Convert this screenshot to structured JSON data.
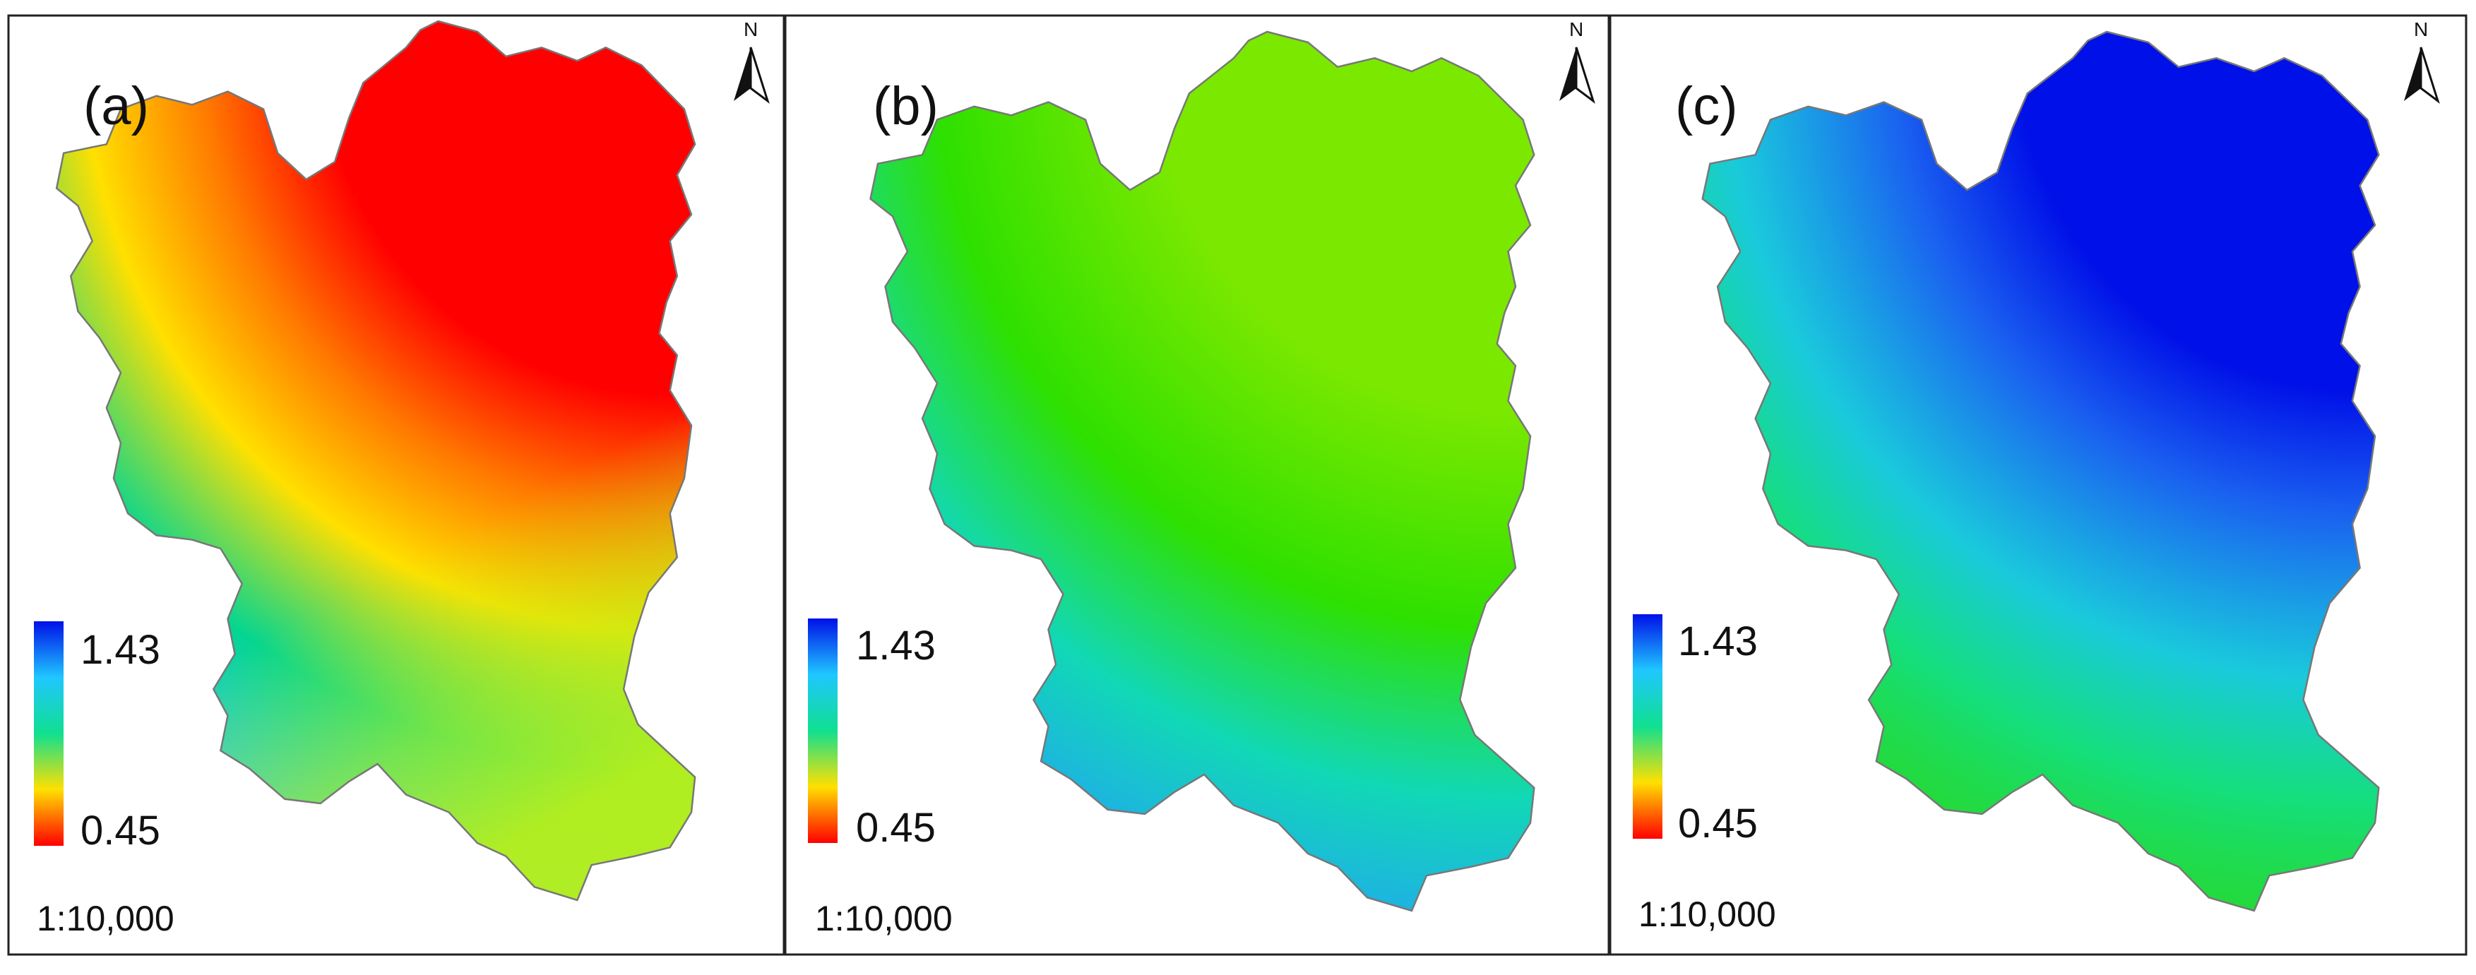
{
  "figure": {
    "panels": [
      {
        "label": "(a)",
        "legend_max": "1.43",
        "legend_min": "0.45",
        "scale": "1:10,000",
        "north": "N",
        "base_color": "#2fe000",
        "bands": [
          {
            "color": "#ff0000",
            "alpha": 1.0,
            "r": 0.3
          },
          {
            "color": "#ff7a00",
            "alpha": 1.0,
            "r": 0.4
          },
          {
            "color": "#ffe000",
            "alpha": 1.0,
            "r": 0.5
          },
          {
            "color": "#00d4a0",
            "alpha": 0.9,
            "r": 0.62
          },
          {
            "color": "#1fc7ff",
            "alpha": 0.9,
            "r": 0.72
          },
          {
            "color": "#2fe000",
            "alpha": 0.0,
            "r": 0.85
          }
        ],
        "south_tint": "#b8ef1a"
      },
      {
        "label": "(b)",
        "legend_max": "1.43",
        "legend_min": "0.45",
        "scale": "1:10,000",
        "north": "N",
        "base_color": "#1c8fe8",
        "bands": [
          {
            "color": "#7be800",
            "alpha": 1.0,
            "r": 0.3
          },
          {
            "color": "#2ee000",
            "alpha": 1.0,
            "r": 0.48
          },
          {
            "color": "#10e0b0",
            "alpha": 0.9,
            "r": 0.62
          },
          {
            "color": "#22aaf0",
            "alpha": 0.9,
            "r": 0.75
          },
          {
            "color": "#1c8fe8",
            "alpha": 0.0,
            "r": 0.95
          }
        ],
        "south_tint": ""
      },
      {
        "label": "(c)",
        "legend_max": "1.43",
        "legend_min": "0.45",
        "scale": "1:10,000",
        "north": "N",
        "base_color": "#28d828",
        "bands": [
          {
            "color": "#0010e8",
            "alpha": 1.0,
            "r": 0.28
          },
          {
            "color": "#1a60f0",
            "alpha": 1.0,
            "r": 0.38
          },
          {
            "color": "#18c8f0",
            "alpha": 0.9,
            "r": 0.52
          },
          {
            "color": "#10e090",
            "alpha": 0.8,
            "r": 0.62
          },
          {
            "color": "#28d828",
            "alpha": 0.0,
            "r": 0.8
          }
        ],
        "south_tint": ""
      }
    ],
    "legend_ramp": [
      "#0010e8",
      "#1fc7ff",
      "#10e090",
      "#ffe000",
      "#ff0000"
    ],
    "colors": {
      "frame": "#222222",
      "outline": "#777777"
    }
  }
}
